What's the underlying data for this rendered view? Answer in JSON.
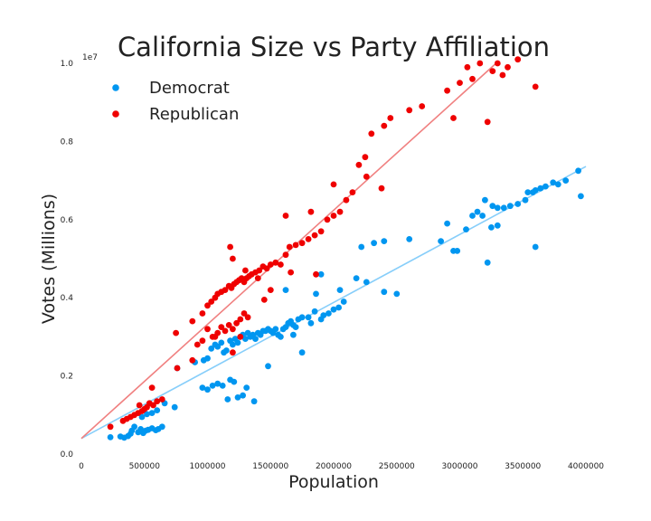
{
  "chart_data": {
    "type": "scatter",
    "title": "California Size vs Party Affiliation",
    "xlabel": "Population",
    "ylabel": "Votes (Millions)",
    "y_offset_text": "1e7",
    "xlim": [
      0,
      4000000
    ],
    "ylim": [
      0,
      10000000
    ],
    "xticks": [
      0,
      500000,
      1000000,
      1500000,
      2000000,
      2500000,
      3000000,
      3500000,
      4000000
    ],
    "xtick_labels": [
      "0",
      "500000",
      "1000000",
      "1500000",
      "2000000",
      "2500000",
      "3000000",
      "3500000",
      "4000000"
    ],
    "yticks": [
      0,
      2000000,
      4000000,
      6000000,
      8000000,
      10000000
    ],
    "ytick_labels": [
      "0.0",
      "0.2",
      "0.4",
      "0.6",
      "0.8",
      "1.0"
    ],
    "grid": false,
    "legend_position": "top-left",
    "series": [
      {
        "name": "Democrat",
        "color": "#0096f0",
        "trend_color": "#87cefa",
        "trend": {
          "intercept": 400000,
          "slope": 1.74
        },
        "points": [
          [
            230000,
            430000
          ],
          [
            310000,
            450000
          ],
          [
            340000,
            420000
          ],
          [
            370000,
            460000
          ],
          [
            390000,
            520000
          ],
          [
            400000,
            600000
          ],
          [
            420000,
            700000
          ],
          [
            450000,
            560000
          ],
          [
            470000,
            640000
          ],
          [
            490000,
            540000
          ],
          [
            510000,
            600000
          ],
          [
            530000,
            620000
          ],
          [
            560000,
            660000
          ],
          [
            590000,
            610000
          ],
          [
            610000,
            640000
          ],
          [
            640000,
            700000
          ],
          [
            480000,
            950000
          ],
          [
            520000,
            1020000
          ],
          [
            560000,
            1050000
          ],
          [
            600000,
            1120000
          ],
          [
            660000,
            1300000
          ],
          [
            740000,
            1200000
          ],
          [
            760000,
            2200000
          ],
          [
            900000,
            2350000
          ],
          [
            970000,
            2400000
          ],
          [
            1000000,
            2450000
          ],
          [
            1030000,
            2700000
          ],
          [
            1060000,
            2800000
          ],
          [
            1080000,
            2750000
          ],
          [
            1110000,
            2850000
          ],
          [
            1130000,
            2600000
          ],
          [
            1150000,
            2650000
          ],
          [
            1180000,
            2900000
          ],
          [
            1200000,
            2800000
          ],
          [
            1220000,
            2950000
          ],
          [
            1240000,
            2850000
          ],
          [
            1260000,
            3000000
          ],
          [
            1280000,
            3050000
          ],
          [
            1300000,
            2950000
          ],
          [
            1320000,
            3100000
          ],
          [
            1340000,
            3000000
          ],
          [
            1360000,
            3050000
          ],
          [
            1380000,
            2950000
          ],
          [
            1400000,
            3100000
          ],
          [
            1420000,
            3050000
          ],
          [
            1440000,
            3150000
          ],
          [
            1460000,
            3150000
          ],
          [
            1480000,
            3200000
          ],
          [
            1500000,
            3150000
          ],
          [
            1520000,
            3100000
          ],
          [
            1540000,
            3200000
          ],
          [
            1560000,
            3050000
          ],
          [
            1580000,
            3000000
          ],
          [
            1600000,
            3200000
          ],
          [
            1620000,
            3250000
          ],
          [
            1640000,
            3350000
          ],
          [
            1660000,
            3400000
          ],
          [
            1680000,
            3300000
          ],
          [
            1700000,
            3250000
          ],
          [
            1720000,
            3450000
          ],
          [
            1750000,
            3500000
          ],
          [
            1800000,
            3500000
          ],
          [
            1850000,
            3650000
          ],
          [
            1900000,
            3450000
          ],
          [
            1920000,
            3550000
          ],
          [
            1960000,
            3600000
          ],
          [
            2000000,
            3700000
          ],
          [
            2040000,
            3750000
          ],
          [
            2080000,
            3900000
          ],
          [
            1620000,
            4200000
          ],
          [
            1860000,
            4100000
          ],
          [
            1900000,
            4600000
          ],
          [
            2050000,
            4200000
          ],
          [
            2180000,
            4500000
          ],
          [
            2220000,
            5300000
          ],
          [
            2260000,
            4400000
          ],
          [
            2320000,
            5400000
          ],
          [
            2400000,
            5450000
          ],
          [
            2400000,
            4150000
          ],
          [
            2500000,
            4100000
          ],
          [
            2600000,
            5500000
          ],
          [
            2850000,
            5450000
          ],
          [
            2900000,
            5900000
          ],
          [
            2950000,
            5200000
          ],
          [
            2980000,
            5200000
          ],
          [
            3050000,
            5750000
          ],
          [
            3100000,
            6100000
          ],
          [
            3140000,
            6200000
          ],
          [
            3180000,
            6100000
          ],
          [
            3200000,
            6500000
          ],
          [
            3260000,
            6350000
          ],
          [
            3300000,
            6300000
          ],
          [
            3350000,
            6300000
          ],
          [
            3400000,
            6350000
          ],
          [
            3460000,
            6400000
          ],
          [
            3520000,
            6500000
          ],
          [
            3540000,
            6700000
          ],
          [
            3580000,
            6700000
          ],
          [
            3600000,
            6750000
          ],
          [
            3640000,
            6800000
          ],
          [
            3680000,
            6850000
          ],
          [
            3740000,
            6950000
          ],
          [
            3780000,
            6900000
          ],
          [
            3840000,
            7000000
          ],
          [
            3940000,
            7250000
          ],
          [
            3960000,
            6600000
          ],
          [
            3600000,
            5300000
          ],
          [
            3220000,
            4900000
          ],
          [
            3250000,
            5800000
          ],
          [
            3300000,
            5850000
          ],
          [
            1160000,
            1400000
          ],
          [
            1240000,
            1450000
          ],
          [
            1280000,
            1500000
          ],
          [
            1310000,
            1700000
          ],
          [
            1370000,
            1350000
          ],
          [
            1480000,
            2250000
          ],
          [
            1680000,
            3050000
          ],
          [
            1750000,
            2600000
          ],
          [
            1820000,
            3350000
          ],
          [
            960000,
            1700000
          ],
          [
            1000000,
            1650000
          ],
          [
            1040000,
            1750000
          ],
          [
            1080000,
            1800000
          ],
          [
            1120000,
            1750000
          ],
          [
            1180000,
            1900000
          ],
          [
            1210000,
            1850000
          ]
        ]
      },
      {
        "name": "Republican",
        "color": "#ef0000",
        "trend_color": "#f08080",
        "trend": {
          "intercept": 400000,
          "slope": 2.92
        },
        "points": [
          [
            230000,
            700000
          ],
          [
            330000,
            850000
          ],
          [
            360000,
            900000
          ],
          [
            390000,
            950000
          ],
          [
            420000,
            1000000
          ],
          [
            450000,
            1050000
          ],
          [
            460000,
            1250000
          ],
          [
            480000,
            1100000
          ],
          [
            500000,
            1150000
          ],
          [
            520000,
            1200000
          ],
          [
            540000,
            1300000
          ],
          [
            570000,
            1250000
          ],
          [
            600000,
            1350000
          ],
          [
            640000,
            1400000
          ],
          [
            560000,
            1700000
          ],
          [
            760000,
            2200000
          ],
          [
            750000,
            3100000
          ],
          [
            880000,
            3400000
          ],
          [
            920000,
            2800000
          ],
          [
            960000,
            2900000
          ],
          [
            1000000,
            3200000
          ],
          [
            1040000,
            3000000
          ],
          [
            1060000,
            3000000
          ],
          [
            1080000,
            3100000
          ],
          [
            1110000,
            3250000
          ],
          [
            1140000,
            3150000
          ],
          [
            1170000,
            3300000
          ],
          [
            1200000,
            3200000
          ],
          [
            1230000,
            3350000
          ],
          [
            1260000,
            3450000
          ],
          [
            1290000,
            3600000
          ],
          [
            1000000,
            3800000
          ],
          [
            1030000,
            3900000
          ],
          [
            1060000,
            4000000
          ],
          [
            1080000,
            4100000
          ],
          [
            1110000,
            4150000
          ],
          [
            1140000,
            4200000
          ],
          [
            1170000,
            4300000
          ],
          [
            1190000,
            4250000
          ],
          [
            1210000,
            4350000
          ],
          [
            1230000,
            4400000
          ],
          [
            1250000,
            4450000
          ],
          [
            1270000,
            4500000
          ],
          [
            1290000,
            4400000
          ],
          [
            1310000,
            4500000
          ],
          [
            1330000,
            4550000
          ],
          [
            1350000,
            4600000
          ],
          [
            1380000,
            4650000
          ],
          [
            1410000,
            4700000
          ],
          [
            1440000,
            4800000
          ],
          [
            1470000,
            4750000
          ],
          [
            1500000,
            4850000
          ],
          [
            1540000,
            4900000
          ],
          [
            1580000,
            4850000
          ],
          [
            1620000,
            5100000
          ],
          [
            1650000,
            5300000
          ],
          [
            1700000,
            5350000
          ],
          [
            1750000,
            5400000
          ],
          [
            1800000,
            5500000
          ],
          [
            1850000,
            5600000
          ],
          [
            1900000,
            5700000
          ],
          [
            1950000,
            6000000
          ],
          [
            2000000,
            6100000
          ],
          [
            2050000,
            6200000
          ],
          [
            2100000,
            6500000
          ],
          [
            2150000,
            6700000
          ],
          [
            2000000,
            6900000
          ],
          [
            2200000,
            7400000
          ],
          [
            2250000,
            7600000
          ],
          [
            2300000,
            8200000
          ],
          [
            2400000,
            8400000
          ],
          [
            2450000,
            8600000
          ],
          [
            2600000,
            8800000
          ],
          [
            2700000,
            8900000
          ],
          [
            2900000,
            9300000
          ],
          [
            2950000,
            8600000
          ],
          [
            3000000,
            9500000
          ],
          [
            3060000,
            9900000
          ],
          [
            3100000,
            9600000
          ],
          [
            3160000,
            10000000
          ],
          [
            3220000,
            8500000
          ],
          [
            3260000,
            9800000
          ],
          [
            3300000,
            10000000
          ],
          [
            3340000,
            9700000
          ],
          [
            3380000,
            9900000
          ],
          [
            3460000,
            10100000
          ],
          [
            3600000,
            9400000
          ],
          [
            1620000,
            6100000
          ],
          [
            1820000,
            6200000
          ],
          [
            1450000,
            3950000
          ],
          [
            1660000,
            4650000
          ],
          [
            2260000,
            7100000
          ],
          [
            2380000,
            6800000
          ],
          [
            1320000,
            3500000
          ],
          [
            880000,
            2400000
          ],
          [
            960000,
            3600000
          ],
          [
            1200000,
            2600000
          ],
          [
            1260000,
            3000000
          ],
          [
            1180000,
            5300000
          ],
          [
            1200000,
            5000000
          ],
          [
            1300000,
            4700000
          ],
          [
            1400000,
            4500000
          ],
          [
            1500000,
            4200000
          ],
          [
            1860000,
            4600000
          ]
        ]
      }
    ]
  }
}
